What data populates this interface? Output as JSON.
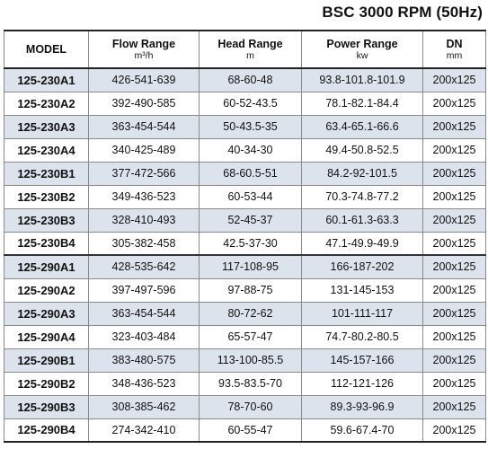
{
  "title": "BSC 3000 RPM (50Hz)",
  "headers": {
    "model": "MODEL",
    "flow": "Flow Range",
    "flow_unit": "m³/h",
    "head": "Head Range",
    "head_unit": "m",
    "power": "Power Range",
    "power_unit": "kw",
    "dn": "DN",
    "dn_unit": "mm"
  },
  "rows": [
    {
      "model": "125-230A1",
      "flow": "426-541-639",
      "head": "68-60-48",
      "power": "93.8-101.8-101.9",
      "dn": "200x125"
    },
    {
      "model": "125-230A2",
      "flow": "392-490-585",
      "head": "60-52-43.5",
      "power": "78.1-82.1-84.4",
      "dn": "200x125"
    },
    {
      "model": "125-230A3",
      "flow": "363-454-544",
      "head": "50-43.5-35",
      "power": "63.4-65.1-66.6",
      "dn": "200x125"
    },
    {
      "model": "125-230A4",
      "flow": "340-425-489",
      "head": "40-34-30",
      "power": "49.4-50.8-52.5",
      "dn": "200x125"
    },
    {
      "model": "125-230B1",
      "flow": "377-472-566",
      "head": "68-60.5-51",
      "power": "84.2-92-101.5",
      "dn": "200x125"
    },
    {
      "model": "125-230B2",
      "flow": "349-436-523",
      "head": "60-53-44",
      "power": "70.3-74.8-77.2",
      "dn": "200x125"
    },
    {
      "model": "125-230B3",
      "flow": "328-410-493",
      "head": "52-45-37",
      "power": "60.1-61.3-63.3",
      "dn": "200x125"
    },
    {
      "model": "125-230B4",
      "flow": "305-382-458",
      "head": "42.5-37-30",
      "power": "47.1-49.9-49.9",
      "dn": "200x125"
    },
    {
      "model": "125-290A1",
      "flow": "428-535-642",
      "head": "117-108-95",
      "power": "166-187-202",
      "dn": "200x125"
    },
    {
      "model": "125-290A2",
      "flow": "397-497-596",
      "head": "97-88-75",
      "power": "131-145-153",
      "dn": "200x125"
    },
    {
      "model": "125-290A3",
      "flow": "363-454-544",
      "head": "80-72-62",
      "power": "101-111-117",
      "dn": "200x125"
    },
    {
      "model": "125-290A4",
      "flow": "323-403-484",
      "head": "65-57-47",
      "power": "74.7-80.2-80.5",
      "dn": "200x125"
    },
    {
      "model": "125-290B1",
      "flow": "383-480-575",
      "head": "113-100-85.5",
      "power": "145-157-166",
      "dn": "200x125"
    },
    {
      "model": "125-290B2",
      "flow": "348-436-523",
      "head": "93.5-83.5-70",
      "power": "112-121-126",
      "dn": "200x125"
    },
    {
      "model": "125-290B3",
      "flow": "308-385-462",
      "head": "78-70-60",
      "power": "89.3-93-96.9",
      "dn": "200x125"
    },
    {
      "model": "125-290B4",
      "flow": "274-342-410",
      "head": "60-55-47",
      "power": "59.6-67.4-70",
      "dn": "200x125"
    }
  ],
  "colors": {
    "shade": "#dde3ec",
    "border": "#8a8a8a"
  }
}
